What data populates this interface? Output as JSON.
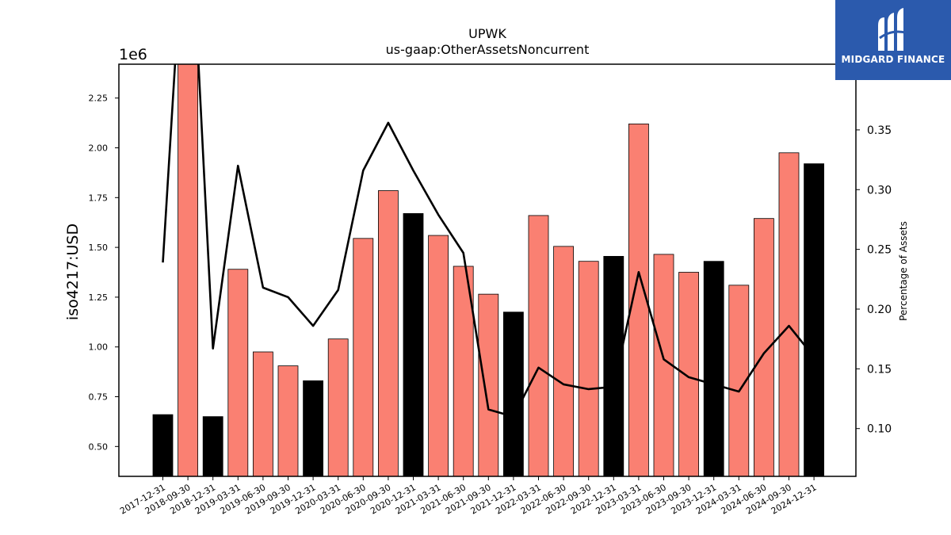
{
  "chart_data": {
    "type": "bar",
    "title": "UPWK",
    "subtitle": "us-gaap:OtherAssetsNoncurrent",
    "ylabel": "iso4217:USD",
    "y_multiplier_label": "1e6",
    "y2label": "Percentage of Assets",
    "ylim": [
      350000,
      2420000
    ],
    "y2lim": [
      0.06,
      0.405
    ],
    "yticks": [
      "0.50",
      "0.75",
      "1.00",
      "1.25",
      "1.50",
      "1.75",
      "2.00",
      "2.25"
    ],
    "y2ticks": [
      "0.10",
      "0.15",
      "0.20",
      "0.25",
      "0.30",
      "0.35"
    ],
    "categories": [
      "2017-12-31",
      "2018-09-30",
      "2018-12-31",
      "2019-03-31",
      "2019-06-30",
      "2019-09-30",
      "2019-12-31",
      "2020-03-31",
      "2020-06-30",
      "2020-09-30",
      "2020-12-31",
      "2021-03-31",
      "2021-06-30",
      "2021-09-30",
      "2021-12-31",
      "2022-03-31",
      "2022-06-30",
      "2022-09-30",
      "2022-12-31",
      "2023-03-31",
      "2023-06-30",
      "2023-09-30",
      "2023-12-31",
      "2024-03-31",
      "2024-06-30",
      "2024-09-30",
      "2024-12-31"
    ],
    "values": [
      660000,
      2450000,
      650000,
      1390000,
      975000,
      905000,
      830000,
      1040000,
      1545000,
      1785000,
      1670000,
      1560000,
      1405000,
      1265000,
      1175000,
      1660000,
      1505000,
      1430000,
      1455000,
      2120000,
      1465000,
      1375000,
      1430000,
      1310000,
      1645000,
      1975000,
      1920000
    ],
    "bar_colors": [
      "#000000",
      "#fa8072",
      "#000000",
      "#fa8072",
      "#fa8072",
      "#fa8072",
      "#000000",
      "#fa8072",
      "#fa8072",
      "#fa8072",
      "#000000",
      "#fa8072",
      "#fa8072",
      "#fa8072",
      "#000000",
      "#fa8072",
      "#fa8072",
      "#fa8072",
      "#000000",
      "#fa8072",
      "#fa8072",
      "#fa8072",
      "#000000",
      "#fa8072",
      "#fa8072",
      "#fa8072",
      "#000000"
    ],
    "line_series": {
      "name": "Percentage of Assets",
      "values": [
        0.239,
        0.58,
        0.167,
        0.32,
        0.218,
        0.21,
        0.186,
        0.216,
        0.316,
        0.356,
        0.316,
        0.279,
        0.247,
        0.116,
        0.11,
        0.151,
        0.137,
        0.133,
        0.135,
        0.231,
        0.158,
        0.143,
        0.137,
        0.131,
        0.163,
        0.186,
        0.16
      ]
    },
    "colors": {
      "annual_bar": "#000000",
      "quarter_bar": "#fa8072",
      "line": "#000000"
    },
    "grid": false
  },
  "brand": {
    "logo_text": "MIDGARD FINANCE"
  }
}
